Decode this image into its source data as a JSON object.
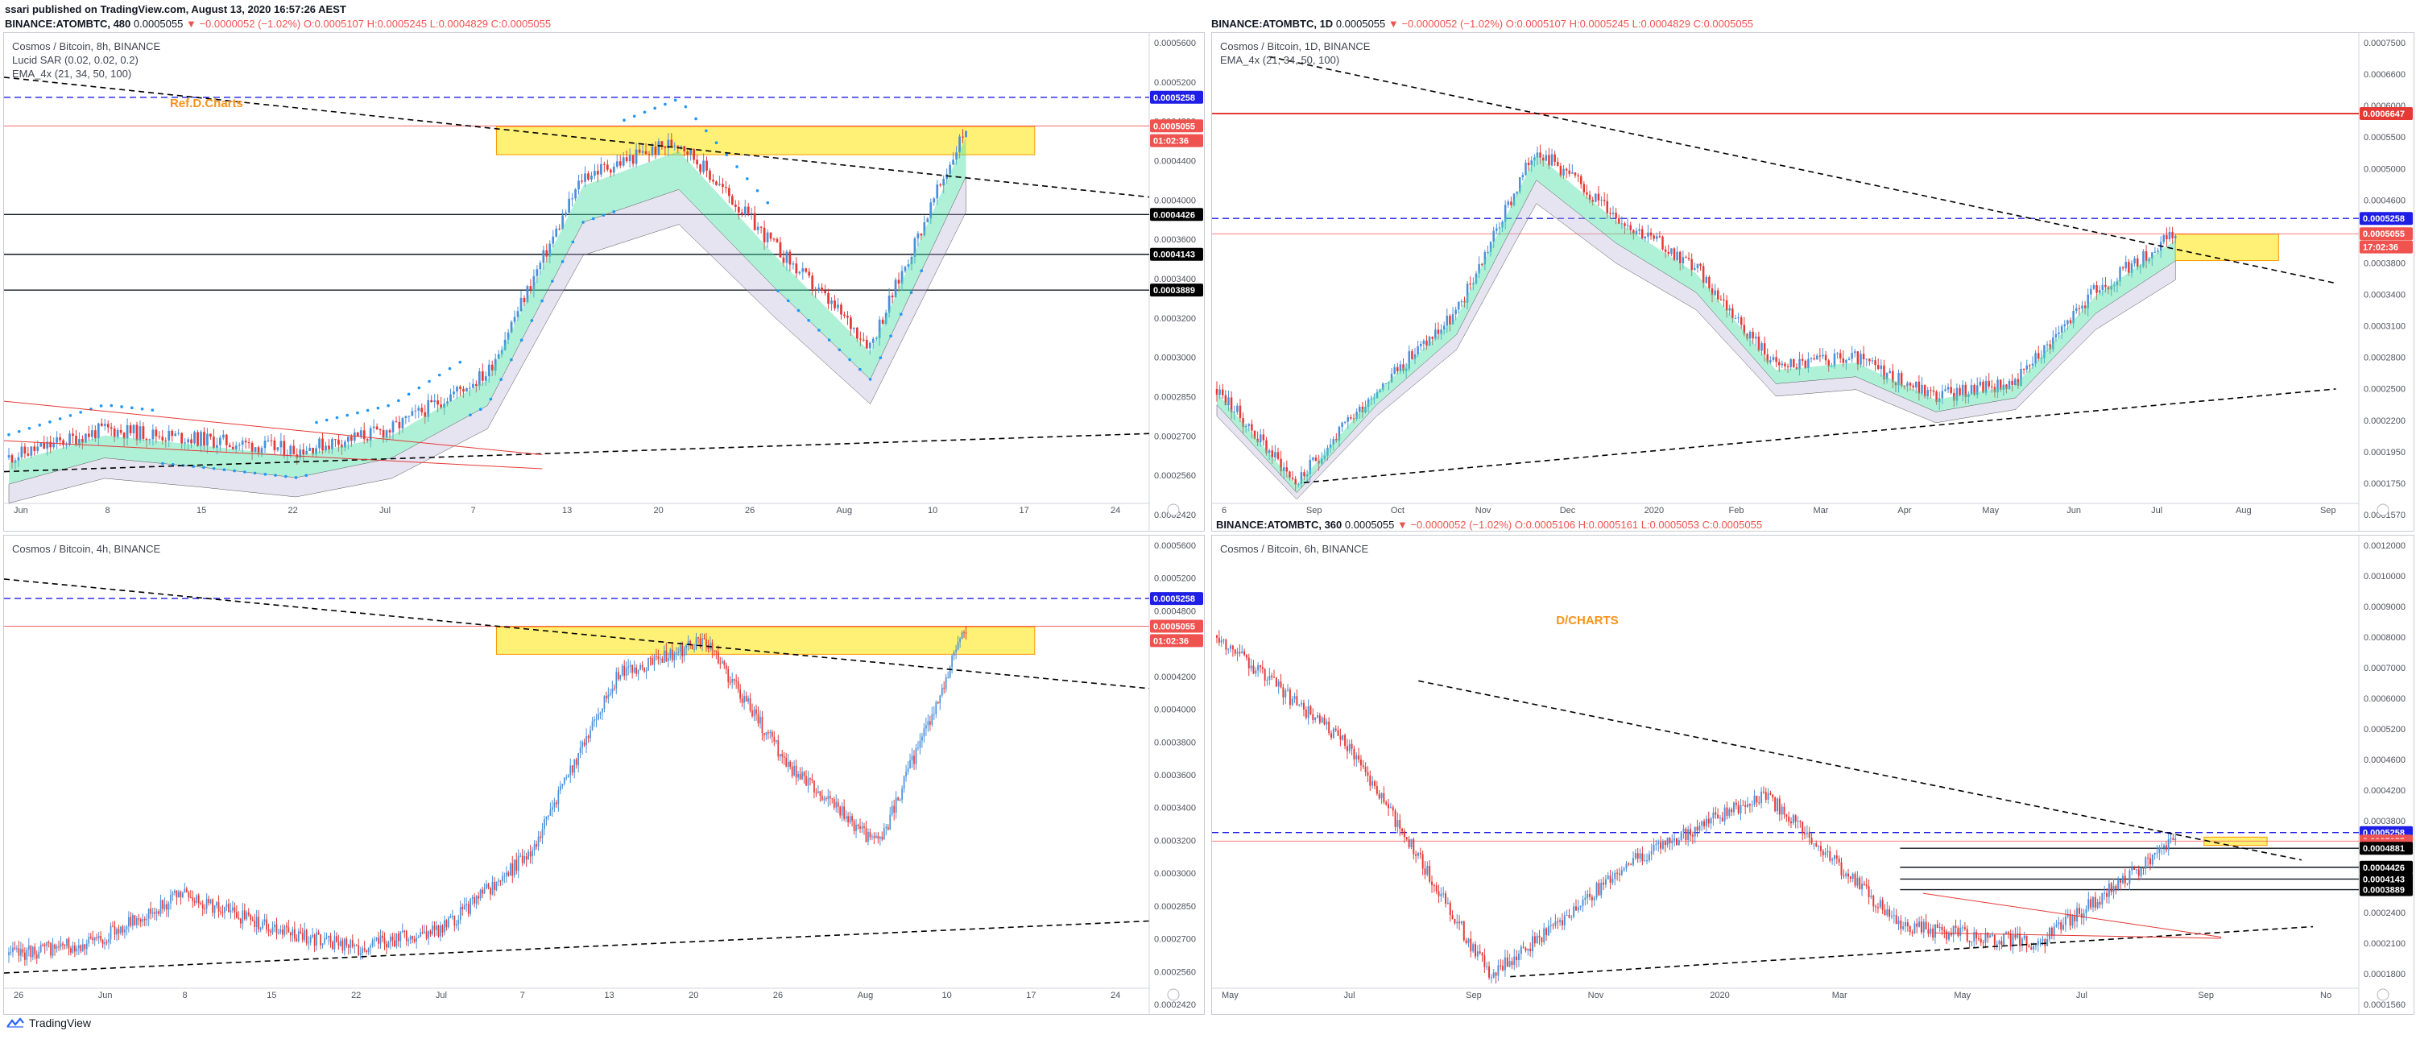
{
  "header": {
    "publisher": "ssari published on TradingView.com, August 13, 2020 16:57:26 AEST",
    "symbol_line_main": "BINANCE:ATOMBTC, 480",
    "symbol_line_right": "BINANCE:ATOMBTC, 1D",
    "quote_last": "0.0005055",
    "quote_change": "▼ −0.0000052 (−1.02%)",
    "quote_open": "O:0.0005107",
    "quote_high": "H:0.0005245",
    "quote_low": "L:0.0004829",
    "quote_close": "C:0.0005055"
  },
  "panels": [
    {
      "id": "p1",
      "legend": [
        "Cosmos / Bitcoin, 8h, BINANCE",
        "Lucid SAR (0.02, 0.02, 0.2)",
        "EMA_4x (21, 34, 50, 100)"
      ],
      "annotation": "Ref.D.Charts",
      "x_ticks": [
        "Jun",
        "8",
        "15",
        "22",
        "Jul",
        "7",
        "13",
        "20",
        "26",
        "Aug",
        "10",
        "17",
        "24"
      ],
      "y_ticks": [
        "0.0005600",
        "0.0005200",
        "0.0004800",
        "0.0004400",
        "0.0004000",
        "0.0003600",
        "0.0003400",
        "0.0003200",
        "0.0003000",
        "0.0002850",
        "0.0002700",
        "0.0002560",
        "0.0002420"
      ],
      "price_tags": [
        {
          "label": "0.0005258",
          "value": 0.0005258,
          "color": "#1e1ee6"
        },
        {
          "label": "0.0005055",
          "value": 0.0005055,
          "color": "#ef5350"
        },
        {
          "label": "01:02:36",
          "value": 0.000495,
          "color": "#ef5350"
        },
        {
          "label": "0.0004426",
          "value": 0.0004426,
          "color": "#000000"
        },
        {
          "label": "0.0004143",
          "value": 0.0004143,
          "color": "#000000"
        },
        {
          "label": "0.0003889",
          "value": 0.0003889,
          "color": "#000000"
        }
      ]
    },
    {
      "id": "p2",
      "legend": [
        "Cosmos / Bitcoin, 1D, BINANCE",
        "EMA_4x (21, 34, 50, 100)"
      ],
      "annotation": "",
      "x_ticks": [
        "6",
        "Sep",
        "Oct",
        "Nov",
        "Dec",
        "2020",
        "Feb",
        "Mar",
        "Apr",
        "May",
        "Jun",
        "Jul",
        "Aug",
        "Sep"
      ],
      "y_ticks": [
        "0.0007500",
        "0.0006600",
        "0.0006000",
        "0.0005500",
        "0.0005000",
        "0.0004600",
        "0.0004200",
        "0.0003800",
        "0.0003400",
        "0.0003100",
        "0.0002800",
        "0.0002500",
        "0.0002200",
        "0.0001950",
        "0.0001750",
        "0.0001570"
      ],
      "price_tags": [
        {
          "label": "0.0006647",
          "value": 0.0006647,
          "color": "#e53935"
        },
        {
          "label": "0.0005258",
          "value": 0.0005258,
          "color": "#1e1ee6"
        },
        {
          "label": "0.0005055",
          "value": 0.0005055,
          "color": "#ef5350"
        },
        {
          "label": "17:02:36",
          "value": 0.000488,
          "color": "#ef5350"
        }
      ]
    },
    {
      "id": "p3",
      "legend": [
        "Cosmos / Bitcoin, 4h, BINANCE"
      ],
      "annotation": "",
      "x_ticks": [
        "26",
        "Jun",
        "8",
        "15",
        "22",
        "Jul",
        "7",
        "13",
        "20",
        "26",
        "Aug",
        "10",
        "17",
        "24"
      ],
      "y_ticks": [
        "0.0005600",
        "0.0005200",
        "0.0004800",
        "0.0004400",
        "0.0004200",
        "0.0004000",
        "0.0003800",
        "0.0003600",
        "0.0003400",
        "0.0003200",
        "0.0003000",
        "0.0002850",
        "0.0002700",
        "0.0002560",
        "0.0002420"
      ],
      "price_tags": [
        {
          "label": "0.0005258",
          "value": 0.0005258,
          "color": "#1e1ee6"
        },
        {
          "label": "0.0005055",
          "value": 0.0005055,
          "color": "#ef5350"
        },
        {
          "label": "01:02:36",
          "value": 0.000495,
          "color": "#ef5350"
        }
      ]
    },
    {
      "id": "p4",
      "legend": [
        "Cosmos / Bitcoin, 6h, BINANCE"
      ],
      "header": "BINANCE:ATOMBTC, 360",
      "header_ohlc": "O:0.0005106  H:0.0005161  L:0.0005053  C:0.0005055",
      "annotation": "D/CHARTS",
      "x_ticks": [
        "May",
        "Jul",
        "Sep",
        "Nov",
        "2020",
        "Mar",
        "May",
        "Jul",
        "Sep",
        "No"
      ],
      "y_ticks": [
        "0.0012000",
        "0.0010000",
        "0.0009000",
        "0.0008000",
        "0.0007000",
        "0.0006000",
        "0.0005200",
        "0.0004600",
        "0.0004200",
        "0.0003800",
        "0.0003200",
        "0.0002800",
        "0.0002400",
        "0.0002100",
        "0.0001800",
        "0.0001560"
      ],
      "price_tags": [
        {
          "label": "0.0005258",
          "value": 0.0005258,
          "color": "#1e1ee6"
        },
        {
          "label": "0.0005055",
          "value": 0.0005055,
          "color": "#ef5350"
        },
        {
          "label": "05:02:36",
          "value": 0.000495,
          "color": "#ef5350"
        },
        {
          "label": "0.0004881",
          "value": 0.0004881,
          "color": "#000000"
        },
        {
          "label": "0.0004426",
          "value": 0.0004426,
          "color": "#000000"
        },
        {
          "label": "0.0004143",
          "value": 0.0004143,
          "color": "#000000"
        },
        {
          "label": "0.0003889",
          "value": 0.0003889,
          "color": "#000000"
        }
      ]
    }
  ],
  "footer": {
    "brand": "TradingView"
  },
  "colors": {
    "up": "#26a69a",
    "down": "#ef5350",
    "blue_line": "#1e1ee6",
    "zone": "#fff176",
    "ema_fill": "#4ee0a6",
    "ema_slow": "#b9b3d9"
  },
  "chart_data": [
    {
      "type": "candlestick",
      "title": "Cosmos / Bitcoin, 8h, BINANCE",
      "ylim": [
        0.000242,
        0.00056
      ],
      "x": [
        "Jun",
        "8",
        "15",
        "22",
        "Jul",
        "7",
        "13",
        "20",
        "26",
        "Aug",
        "10"
      ],
      "close": [
        0.00027,
        0.00029,
        0.000283,
        0.000275,
        0.00029,
        0.00033,
        0.00047,
        0.000495,
        0.00042,
        0.00035,
        0.000505
      ],
      "levels": [
        0.0005258,
        0.0004426,
        0.0004143,
        0.0003889
      ],
      "zone": [
        0.000485,
        0.000505
      ]
    },
    {
      "type": "candlestick",
      "title": "Cosmos / Bitcoin, 1D, BINANCE",
      "ylim": [
        0.000157,
        0.00075
      ],
      "x": [
        "6",
        "Sep",
        "Oct",
        "Nov",
        "Dec",
        "2020",
        "Feb",
        "Mar",
        "Apr",
        "May",
        "Jun",
        "Jul",
        "Aug"
      ],
      "close": [
        0.0003,
        0.000175,
        0.0003,
        0.0004,
        0.00062,
        0.00053,
        0.00046,
        0.00033,
        0.00034,
        0.00029,
        0.00031,
        0.00043,
        0.000505
      ],
      "levels": [
        0.0006647,
        0.0005258
      ],
      "zone": [
        0.00047,
        0.000505
      ]
    },
    {
      "type": "candlestick",
      "title": "Cosmos / Bitcoin, 4h, BINANCE",
      "ylim": [
        0.000242,
        0.00056
      ],
      "x": [
        "26",
        "Jun",
        "8",
        "15",
        "22",
        "Jul",
        "7",
        "13",
        "20",
        "26",
        "Aug",
        "10"
      ],
      "close": [
        0.000265,
        0.000275,
        0.00031,
        0.000285,
        0.00027,
        0.000285,
        0.00034,
        0.00047,
        0.000495,
        0.0004,
        0.000345,
        0.000505
      ],
      "levels": [
        0.0005258
      ],
      "zone": [
        0.000485,
        0.000505
      ]
    },
    {
      "type": "candlestick",
      "title": "Cosmos / Bitcoin, 6h, BINANCE",
      "ylim": [
        0.000156,
        0.0012
      ],
      "x": [
        "May",
        "Jul",
        "Sep",
        "Nov",
        "2020",
        "Mar",
        "May",
        "Jul"
      ],
      "close": [
        0.001,
        0.00072,
        0.00018,
        0.00045,
        0.00062,
        0.0003,
        0.00026,
        0.000505
      ],
      "levels": [
        0.0005258,
        0.0004881,
        0.0004426,
        0.0004143,
        0.0003889
      ],
      "zone": [
        0.000495,
        0.000515
      ]
    }
  ]
}
